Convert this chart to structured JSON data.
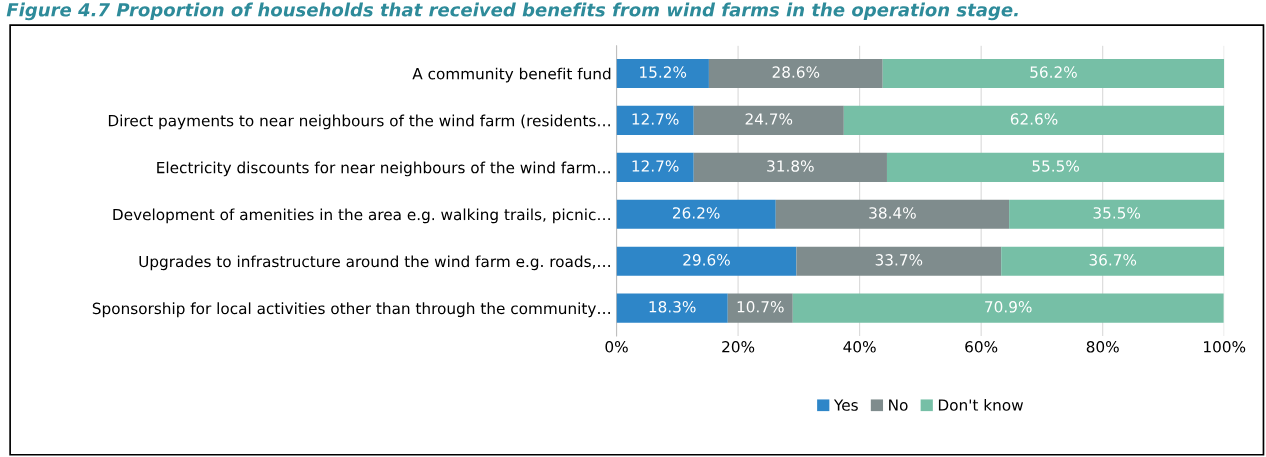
{
  "chart_data": {
    "type": "bar",
    "orientation": "horizontal",
    "stacked": true,
    "title": "Figure 4.7 Proportion of households that received benefits from wind farms in the operation stage.",
    "categories": [
      "A community benefit fund",
      "Direct payments to near neighbours of the wind farm (residents…",
      "Electricity discounts for near neighbours of the wind farm…",
      "Development of amenities in the area e.g. walking trails, picnic…",
      "Upgrades to infrastructure around the wind farm e.g. roads,…",
      "Sponsorship for local activities other than through the community…"
    ],
    "series": [
      {
        "name": "Yes",
        "color": "#2e86c8",
        "values": [
          15.2,
          12.7,
          12.7,
          26.2,
          29.6,
          18.3
        ],
        "value_labels": [
          "15.2%",
          "12.7%",
          "12.7%",
          "26.2%",
          "29.6%",
          "18.3%"
        ]
      },
      {
        "name": "No",
        "color": "#7f8c8d",
        "values": [
          28.6,
          24.7,
          31.8,
          38.4,
          33.7,
          10.7
        ],
        "value_labels": [
          "28.6%",
          "24.7%",
          "31.8%",
          "38.4%",
          "33.7%",
          "10.7%"
        ]
      },
      {
        "name": "Don't know",
        "color": "#76bfa6",
        "values": [
          56.2,
          62.6,
          55.5,
          35.5,
          36.7,
          70.9
        ],
        "value_labels": [
          "56.2%",
          "62.6%",
          "55.5%",
          "35.5%",
          "36.7%",
          "70.9%"
        ]
      }
    ],
    "xlim": [
      0,
      100
    ],
    "xticks": [
      {
        "value": 0,
        "label": "0%"
      },
      {
        "value": 20,
        "label": "20%"
      },
      {
        "value": 40,
        "label": "40%"
      },
      {
        "value": 60,
        "label": "60%"
      },
      {
        "value": 80,
        "label": "80%"
      },
      {
        "value": 100,
        "label": "100%"
      }
    ],
    "grid": "x",
    "legend": "bottom"
  }
}
